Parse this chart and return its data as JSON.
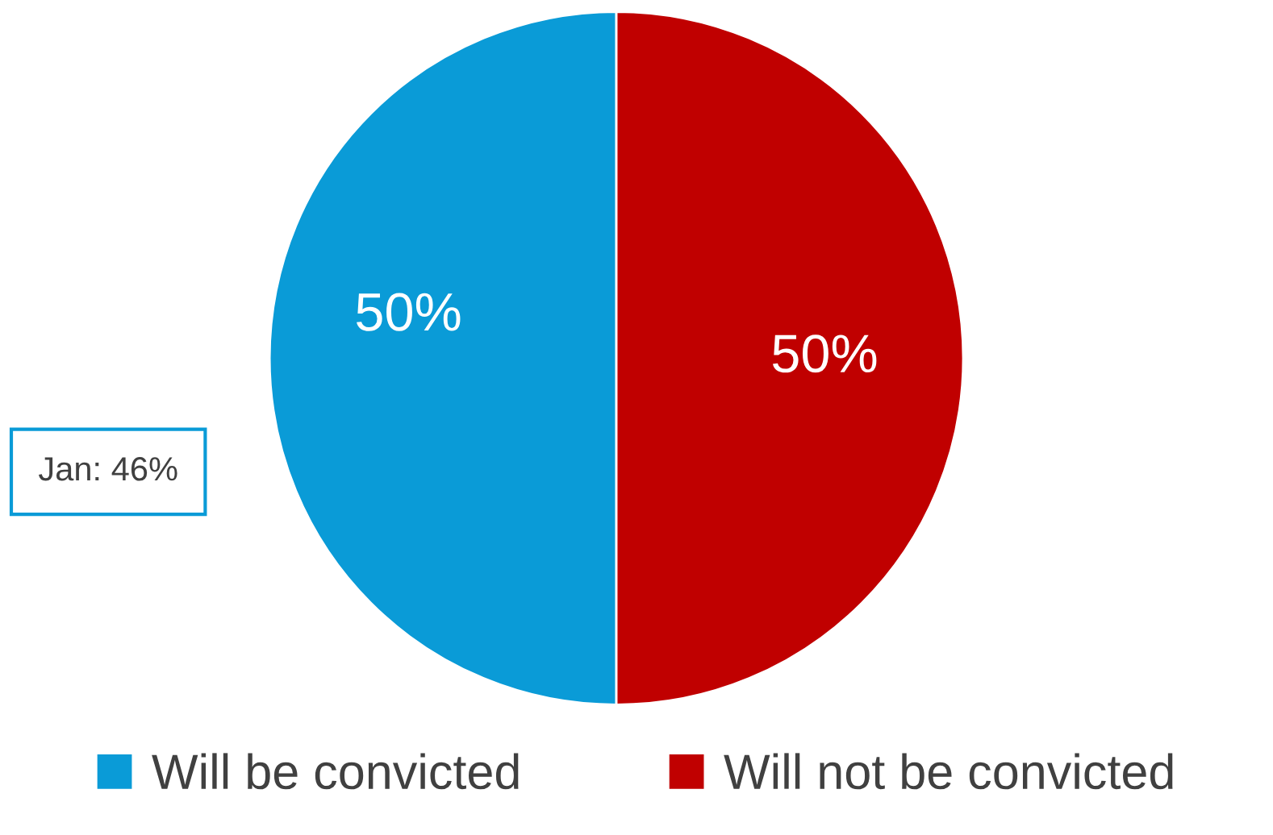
{
  "chart_data": {
    "type": "pie",
    "categories": [
      "Will be convicted",
      "Will not be convicted"
    ],
    "values": [
      50,
      50
    ],
    "colors": [
      "#0a9bd7",
      "#c00000"
    ],
    "value_labels": [
      "50%",
      "50%"
    ],
    "annotations": [
      "Jan: 46%"
    ],
    "legend": "bottom"
  }
}
